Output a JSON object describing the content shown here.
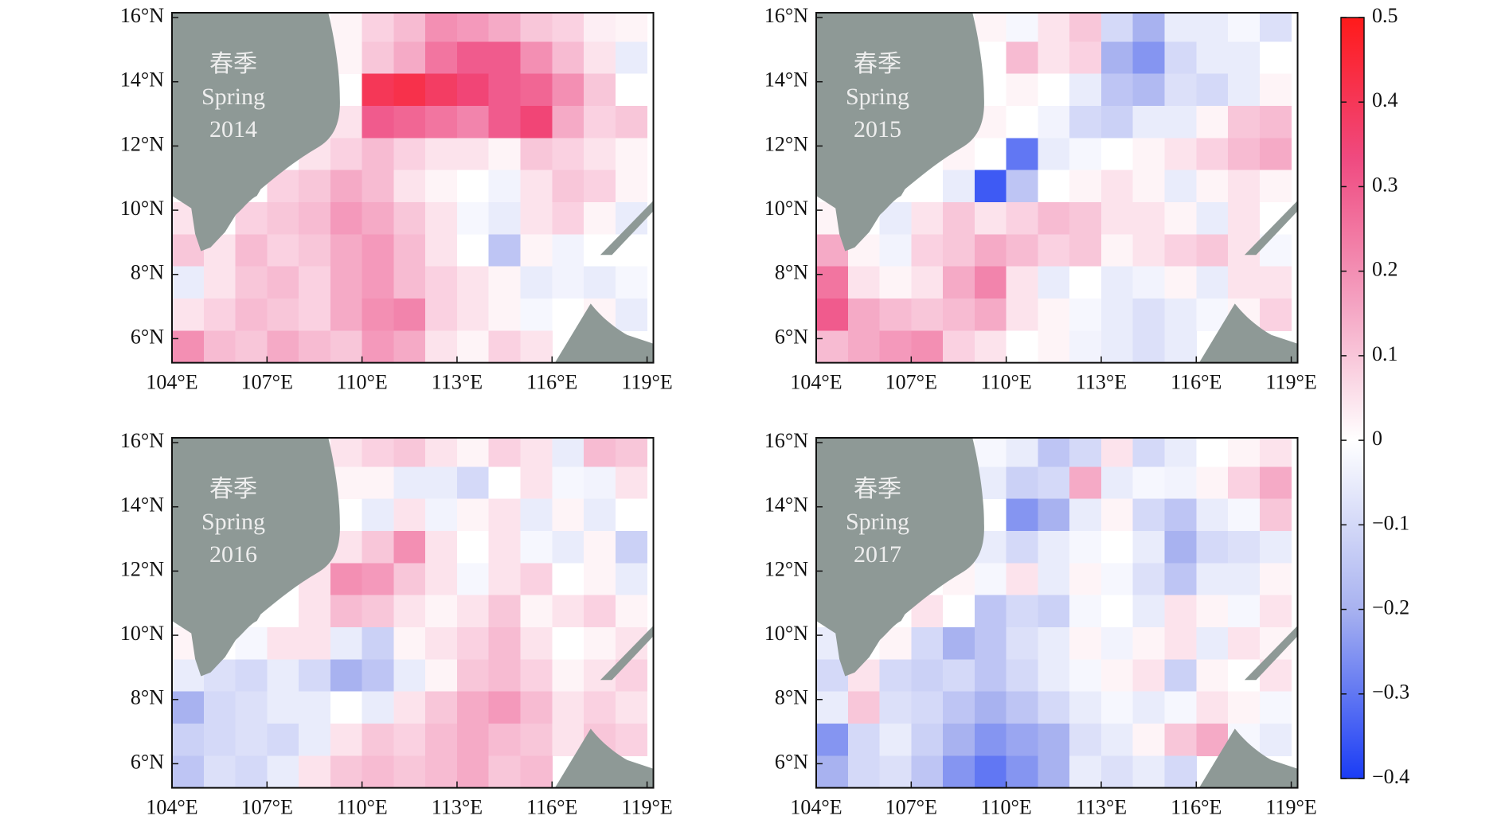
{
  "chart_data": [
    {
      "type": "heatmap",
      "label": [
        "春季",
        "Spring",
        "2014"
      ],
      "x_edges": [
        104,
        105,
        106,
        107,
        108,
        109,
        110,
        111,
        112,
        113,
        114,
        115,
        116,
        117,
        118,
        119
      ],
      "y_edges": [
        16.15,
        15.25,
        14.25,
        13.25,
        12.25,
        11.25,
        10.25,
        9.25,
        8.25,
        7.25,
        6.25,
        5.25
      ],
      "xlim": [
        104,
        119.2
      ],
      "ylim": [
        5.25,
        16.15
      ],
      "xticks": [
        {
          "value": 104,
          "label": "104°E"
        },
        {
          "value": 107,
          "label": "107°E"
        },
        {
          "value": 110,
          "label": "110°E"
        },
        {
          "value": 113,
          "label": "113°E"
        },
        {
          "value": 116,
          "label": "116°E"
        },
        {
          "value": 119,
          "label": "119°E"
        }
      ],
      "yticks": [
        {
          "value": 6,
          "label": "6°N"
        },
        {
          "value": 8,
          "label": "8°N"
        },
        {
          "value": 10,
          "label": "10°N"
        },
        {
          "value": 12,
          "label": "12°N"
        },
        {
          "value": 14,
          "label": "14°N"
        },
        {
          "value": 16,
          "label": "16°N"
        }
      ],
      "values": [
        [
          null,
          null,
          null,
          null,
          null,
          0.02,
          0.08,
          0.12,
          0.2,
          0.18,
          0.15,
          0.1,
          0.08,
          0.03,
          0.02
        ],
        [
          null,
          null,
          null,
          null,
          null,
          0.02,
          0.1,
          0.15,
          0.25,
          0.3,
          0.3,
          0.2,
          0.12,
          0.05,
          -0.05
        ],
        [
          null,
          null,
          null,
          null,
          null,
          null,
          0.4,
          0.42,
          0.38,
          0.35,
          0.3,
          0.28,
          0.2,
          0.1,
          0.0
        ],
        [
          null,
          null,
          null,
          null,
          null,
          0.05,
          0.3,
          0.28,
          0.25,
          0.22,
          0.3,
          0.35,
          0.15,
          0.08,
          0.1
        ],
        [
          null,
          null,
          null,
          null,
          0.05,
          0.08,
          0.12,
          0.08,
          0.05,
          0.05,
          0.02,
          0.1,
          0.08,
          0.05,
          0.02
        ],
        [
          null,
          null,
          null,
          0.08,
          0.1,
          0.15,
          0.12,
          0.05,
          0.02,
          0.0,
          -0.03,
          0.05,
          0.1,
          0.08,
          0.02
        ],
        [
          0.05,
          null,
          0.08,
          0.1,
          0.12,
          0.18,
          0.15,
          0.1,
          0.05,
          -0.02,
          -0.05,
          0.05,
          0.08,
          0.02,
          -0.05
        ],
        [
          0.1,
          0.05,
          0.12,
          0.08,
          0.1,
          0.15,
          0.18,
          0.12,
          0.05,
          0.0,
          -0.15,
          0.02,
          -0.03,
          0.0,
          0.0
        ],
        [
          -0.05,
          0.05,
          0.1,
          0.12,
          0.08,
          0.15,
          0.18,
          0.12,
          0.08,
          0.05,
          0.02,
          -0.05,
          -0.03,
          -0.05,
          -0.02
        ],
        [
          0.05,
          0.08,
          0.12,
          0.1,
          0.08,
          0.15,
          0.2,
          0.22,
          0.08,
          0.05,
          0.02,
          -0.02,
          0.0,
          0.02,
          -0.05
        ],
        [
          0.2,
          0.12,
          0.1,
          0.15,
          0.12,
          0.1,
          0.18,
          0.15,
          0.05,
          0.02,
          0.08,
          0.05,
          null,
          null,
          null
        ]
      ]
    },
    {
      "type": "heatmap",
      "label": [
        "春季",
        "Spring",
        "2015"
      ],
      "x_edges": [
        104,
        105,
        106,
        107,
        108,
        109,
        110,
        111,
        112,
        113,
        114,
        115,
        116,
        117,
        118,
        119
      ],
      "y_edges": [
        16.15,
        15.25,
        14.25,
        13.25,
        12.25,
        11.25,
        10.25,
        9.25,
        8.25,
        7.25,
        6.25,
        5.25
      ],
      "xlim": [
        104,
        119.2
      ],
      "ylim": [
        5.25,
        16.15
      ],
      "xticks": [
        {
          "value": 104,
          "label": "104°E"
        },
        {
          "value": 107,
          "label": "107°E"
        },
        {
          "value": 110,
          "label": "110°E"
        },
        {
          "value": 113,
          "label": "113°E"
        },
        {
          "value": 116,
          "label": "116°E"
        },
        {
          "value": 119,
          "label": "119°E"
        }
      ],
      "yticks": [
        {
          "value": 6,
          "label": "6°N"
        },
        {
          "value": 8,
          "label": "8°N"
        },
        {
          "value": 10,
          "label": "10°N"
        },
        {
          "value": 12,
          "label": "12°N"
        },
        {
          "value": 14,
          "label": "14°N"
        },
        {
          "value": 16,
          "label": "16°N"
        }
      ],
      "values": [
        [
          null,
          null,
          null,
          null,
          null,
          0.02,
          -0.02,
          0.05,
          0.1,
          -0.1,
          -0.2,
          -0.05,
          -0.05,
          -0.02,
          -0.08
        ],
        [
          null,
          null,
          null,
          null,
          null,
          0.0,
          0.12,
          0.05,
          0.08,
          -0.2,
          -0.25,
          -0.1,
          -0.05,
          -0.05,
          0.0
        ],
        [
          null,
          null,
          null,
          null,
          null,
          null,
          0.02,
          0.0,
          -0.05,
          -0.15,
          -0.18,
          -0.08,
          -0.1,
          -0.05,
          0.02
        ],
        [
          null,
          null,
          null,
          null,
          null,
          0.02,
          0.0,
          -0.03,
          -0.1,
          -0.12,
          -0.05,
          -0.05,
          0.02,
          0.1,
          0.12
        ],
        [
          null,
          null,
          null,
          null,
          0.02,
          0.0,
          -0.3,
          -0.05,
          -0.02,
          0.0,
          0.02,
          0.05,
          0.08,
          0.12,
          0.15
        ],
        [
          null,
          null,
          null,
          0.0,
          -0.05,
          -0.35,
          -0.15,
          0.0,
          0.02,
          0.05,
          0.02,
          -0.05,
          0.02,
          0.05,
          0.02
        ],
        [
          0.02,
          null,
          -0.05,
          0.05,
          0.1,
          0.05,
          0.08,
          0.12,
          0.1,
          0.05,
          0.05,
          0.02,
          -0.05,
          0.05,
          0.0
        ],
        [
          0.15,
          0.02,
          -0.03,
          0.08,
          0.1,
          0.15,
          0.12,
          0.08,
          0.1,
          0.02,
          0.05,
          0.08,
          0.1,
          0.05,
          -0.02
        ],
        [
          0.25,
          0.05,
          0.02,
          0.05,
          0.15,
          0.22,
          0.05,
          -0.05,
          0.0,
          -0.05,
          -0.03,
          0.02,
          -0.05,
          0.05,
          0.05
        ],
        [
          0.3,
          0.15,
          0.12,
          0.1,
          0.12,
          0.15,
          0.05,
          0.02,
          -0.02,
          -0.05,
          -0.08,
          -0.05,
          -0.02,
          0.02,
          0.08
        ],
        [
          0.12,
          0.15,
          0.18,
          0.2,
          0.08,
          0.05,
          0.0,
          0.02,
          -0.03,
          -0.05,
          -0.08,
          -0.05,
          null,
          null,
          null
        ]
      ]
    },
    {
      "type": "heatmap",
      "label": [
        "春季",
        "Spring",
        "2016"
      ],
      "x_edges": [
        104,
        105,
        106,
        107,
        108,
        109,
        110,
        111,
        112,
        113,
        114,
        115,
        116,
        117,
        118,
        119
      ],
      "y_edges": [
        16.15,
        15.25,
        14.25,
        13.25,
        12.25,
        11.25,
        10.25,
        9.25,
        8.25,
        7.25,
        6.25,
        5.25
      ],
      "xlim": [
        104,
        119.2
      ],
      "ylim": [
        5.25,
        16.15
      ],
      "xticks": [
        {
          "value": 104,
          "label": "104°E"
        },
        {
          "value": 107,
          "label": "107°E"
        },
        {
          "value": 110,
          "label": "110°E"
        },
        {
          "value": 113,
          "label": "113°E"
        },
        {
          "value": 116,
          "label": "116°E"
        },
        {
          "value": 119,
          "label": "119°E"
        }
      ],
      "yticks": [
        {
          "value": 6,
          "label": "6°N"
        },
        {
          "value": 8,
          "label": "8°N"
        },
        {
          "value": 10,
          "label": "10°N"
        },
        {
          "value": 12,
          "label": "12°N"
        },
        {
          "value": 14,
          "label": "14°N"
        },
        {
          "value": 16,
          "label": "16°N"
        }
      ],
      "values": [
        [
          null,
          null,
          null,
          null,
          null,
          0.05,
          0.08,
          0.1,
          0.05,
          0.02,
          0.08,
          0.05,
          -0.05,
          0.12,
          0.1
        ],
        [
          null,
          null,
          null,
          null,
          null,
          0.02,
          0.02,
          -0.05,
          -0.05,
          -0.1,
          0.0,
          0.05,
          -0.02,
          -0.03,
          0.05
        ],
        [
          null,
          null,
          null,
          null,
          null,
          null,
          -0.05,
          0.05,
          -0.03,
          0.02,
          0.05,
          -0.05,
          0.02,
          -0.05,
          0.0
        ],
        [
          null,
          null,
          null,
          null,
          null,
          0.05,
          0.1,
          0.2,
          0.05,
          0.0,
          0.05,
          -0.02,
          -0.05,
          0.02,
          -0.12
        ],
        [
          null,
          null,
          null,
          null,
          0.05,
          0.2,
          0.18,
          0.1,
          0.05,
          -0.02,
          0.05,
          0.08,
          0.0,
          0.02,
          -0.05
        ],
        [
          null,
          null,
          null,
          0.0,
          0.05,
          0.12,
          0.1,
          0.05,
          0.02,
          0.05,
          0.1,
          0.02,
          0.05,
          0.08,
          0.02
        ],
        [
          0.02,
          null,
          -0.02,
          0.05,
          0.05,
          -0.05,
          -0.12,
          0.02,
          0.05,
          0.08,
          0.12,
          0.05,
          0.0,
          0.02,
          0.05
        ],
        [
          -0.05,
          -0.08,
          -0.1,
          -0.05,
          -0.1,
          -0.2,
          -0.15,
          -0.05,
          0.02,
          0.1,
          0.12,
          0.08,
          0.02,
          0.05,
          0.08
        ],
        [
          -0.2,
          -0.1,
          -0.08,
          -0.05,
          -0.05,
          0.0,
          -0.05,
          0.05,
          0.1,
          0.15,
          0.18,
          0.12,
          0.05,
          0.08,
          0.05
        ],
        [
          -0.12,
          -0.1,
          -0.08,
          -0.1,
          -0.05,
          0.05,
          0.1,
          0.08,
          0.12,
          0.15,
          0.12,
          0.1,
          0.05,
          0.1,
          0.08
        ],
        [
          -0.15,
          -0.08,
          -0.1,
          -0.05,
          0.05,
          0.1,
          0.12,
          0.1,
          0.12,
          0.15,
          0.1,
          0.12,
          null,
          null,
          null
        ]
      ]
    },
    {
      "type": "heatmap",
      "label": [
        "春季",
        "Spring",
        "2017"
      ],
      "x_edges": [
        104,
        105,
        106,
        107,
        108,
        109,
        110,
        111,
        112,
        113,
        114,
        115,
        116,
        117,
        118,
        119
      ],
      "y_edges": [
        16.15,
        15.25,
        14.25,
        13.25,
        12.25,
        11.25,
        10.25,
        9.25,
        8.25,
        7.25,
        6.25,
        5.25
      ],
      "xlim": [
        104,
        119.2
      ],
      "ylim": [
        5.25,
        16.15
      ],
      "xticks": [
        {
          "value": 104,
          "label": "104°E"
        },
        {
          "value": 107,
          "label": "107°E"
        },
        {
          "value": 110,
          "label": "110°E"
        },
        {
          "value": 113,
          "label": "113°E"
        },
        {
          "value": 116,
          "label": "116°E"
        },
        {
          "value": 119,
          "label": "119°E"
        }
      ],
      "yticks": [
        {
          "value": 6,
          "label": "6°N"
        },
        {
          "value": 8,
          "label": "8°N"
        },
        {
          "value": 10,
          "label": "10°N"
        },
        {
          "value": 12,
          "label": "12°N"
        },
        {
          "value": 14,
          "label": "14°N"
        },
        {
          "value": 16,
          "label": "16°N"
        }
      ],
      "values": [
        [
          null,
          null,
          null,
          null,
          null,
          -0.02,
          -0.05,
          -0.15,
          -0.1,
          0.05,
          -0.1,
          -0.05,
          0.0,
          0.02,
          0.05
        ],
        [
          null,
          null,
          null,
          null,
          null,
          -0.05,
          -0.12,
          -0.1,
          0.15,
          -0.05,
          -0.02,
          -0.03,
          0.02,
          0.08,
          0.15
        ],
        [
          null,
          null,
          null,
          null,
          null,
          null,
          -0.25,
          -0.2,
          -0.05,
          0.02,
          -0.1,
          -0.15,
          -0.05,
          -0.02,
          0.1
        ],
        [
          null,
          null,
          null,
          null,
          null,
          -0.05,
          -0.1,
          -0.05,
          -0.02,
          0.0,
          -0.05,
          -0.2,
          -0.1,
          -0.08,
          -0.05
        ],
        [
          null,
          null,
          null,
          null,
          0.02,
          -0.02,
          0.05,
          -0.05,
          0.02,
          -0.02,
          -0.08,
          -0.15,
          -0.05,
          -0.05,
          0.02
        ],
        [
          null,
          null,
          null,
          0.05,
          0.0,
          -0.15,
          -0.1,
          -0.12,
          -0.02,
          0.0,
          -0.05,
          0.05,
          0.02,
          -0.02,
          0.05
        ],
        [
          -0.05,
          null,
          0.02,
          -0.1,
          -0.2,
          -0.15,
          -0.08,
          -0.05,
          0.02,
          -0.03,
          0.02,
          0.05,
          -0.05,
          0.05,
          0.02
        ],
        [
          -0.1,
          0.05,
          -0.1,
          -0.12,
          -0.1,
          -0.15,
          -0.1,
          -0.05,
          -0.02,
          0.02,
          0.05,
          -0.12,
          0.02,
          0.0,
          0.05
        ],
        [
          -0.05,
          0.1,
          -0.08,
          -0.1,
          -0.15,
          -0.2,
          -0.15,
          -0.1,
          -0.05,
          -0.02,
          -0.05,
          -0.02,
          0.05,
          0.02,
          -0.02
        ],
        [
          -0.25,
          -0.1,
          -0.05,
          -0.12,
          -0.2,
          -0.25,
          -0.22,
          -0.2,
          -0.08,
          -0.05,
          0.02,
          0.1,
          0.15,
          -0.02,
          -0.05
        ],
        [
          -0.2,
          -0.1,
          -0.08,
          -0.15,
          -0.25,
          -0.3,
          -0.25,
          -0.2,
          -0.05,
          -0.08,
          -0.05,
          -0.1,
          null,
          null,
          null
        ]
      ]
    }
  ],
  "colorbar": {
    "lim": [
      -0.4,
      0.5
    ],
    "ticks": [
      0.5,
      0.4,
      0.3,
      0.2,
      0.1,
      0,
      {
        "value": -0.1,
        "label": "−0.1"
      },
      {
        "value": -0.2,
        "label": "−0.2"
      },
      {
        "value": -0.3,
        "label": "−0.3"
      },
      {
        "value": -0.4,
        "label": "−0.4"
      }
    ],
    "colors_negative": [
      "#ffffff",
      "#a8b2f0",
      "#1a3cf5"
    ],
    "colors_positive": [
      "#ffffff",
      "#f4a0c0",
      "#ef4a80",
      "#ff1a1a"
    ],
    "land_color": "#8e9996"
  }
}
